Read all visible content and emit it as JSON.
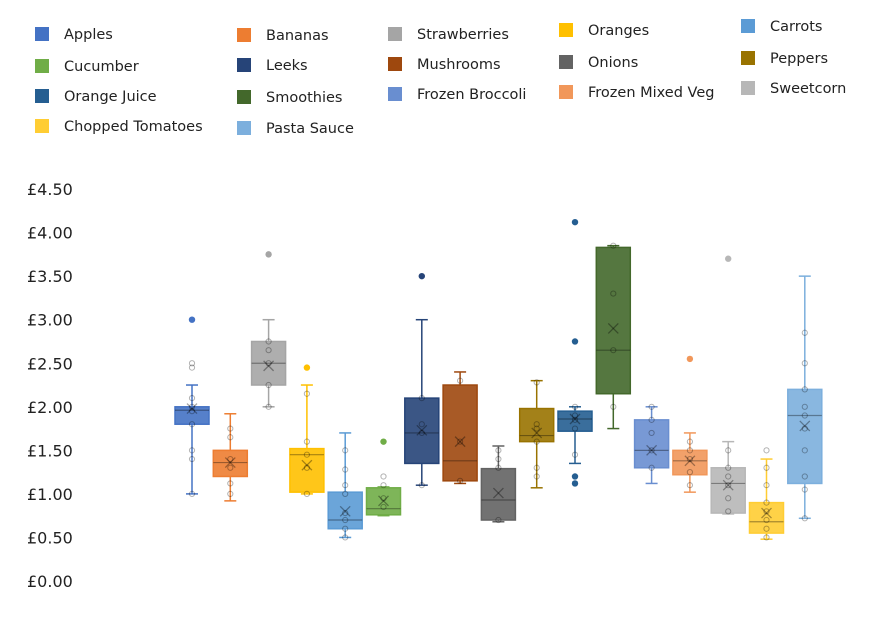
{
  "chart_data": {
    "type": "box",
    "y_axis": {
      "ticks": [
        "£0.00",
        "£0.50",
        "£1.00",
        "£1.50",
        "£2.00",
        "£2.50",
        "£3.00",
        "£3.50",
        "£4.00",
        "£4.50"
      ],
      "range": [
        0,
        4.5
      ]
    },
    "grid": false,
    "legend_position": "top",
    "series": [
      {
        "name": "Apples",
        "color": "#4472C4",
        "min": 1.0,
        "q1": 1.8,
        "median": 1.96,
        "q3": 2.0,
        "max": 2.25,
        "mean": 1.98,
        "outliers": [
          3.0
        ],
        "points": [
          1.0,
          1.4,
          1.5,
          1.8,
          1.95,
          2.0,
          2.1,
          2.45,
          2.5
        ]
      },
      {
        "name": "Bananas",
        "color": "#ED7D31",
        "min": 0.92,
        "q1": 1.2,
        "median": 1.36,
        "q3": 1.5,
        "max": 1.92,
        "mean": 1.36,
        "outliers": [],
        "points": [
          1.0,
          1.12,
          1.3,
          1.4,
          1.65,
          1.75
        ]
      },
      {
        "name": "Strawberries",
        "color": "#A5A5A5",
        "min": 2.0,
        "q1": 2.25,
        "median": 2.5,
        "q3": 2.75,
        "max": 3.0,
        "mean": 2.47,
        "outliers": [
          3.75
        ],
        "points": [
          2.0,
          2.25,
          2.5,
          2.65,
          2.75
        ]
      },
      {
        "name": "Oranges",
        "color": "#FFC000",
        "min": 1.0,
        "q1": 1.02,
        "median": 1.45,
        "q3": 1.52,
        "max": 2.25,
        "mean": 1.33,
        "outliers": [
          2.45
        ],
        "points": [
          1.0,
          1.3,
          1.45,
          1.6,
          2.15
        ]
      },
      {
        "name": "Carrots",
        "color": "#5B9BD5",
        "min": 0.5,
        "q1": 0.6,
        "median": 0.7,
        "q3": 1.02,
        "max": 1.7,
        "mean": 0.8,
        "outliers": [],
        "points": [
          0.5,
          0.6,
          0.7,
          0.78,
          1.0,
          1.1,
          1.28,
          1.5
        ]
      },
      {
        "name": "Cucumber",
        "color": "#70AD47",
        "min": 0.75,
        "q1": 0.76,
        "median": 0.83,
        "q3": 1.07,
        "max": 1.08,
        "mean": 0.92,
        "outliers": [
          1.6
        ],
        "points": [
          0.85,
          0.95,
          1.1,
          1.2
        ]
      },
      {
        "name": "Leeks",
        "color": "#264478",
        "min": 1.1,
        "q1": 1.35,
        "median": 1.7,
        "q3": 2.1,
        "max": 3.0,
        "mean": 1.73,
        "outliers": [
          3.5
        ],
        "points": [
          1.1,
          1.7,
          1.8,
          2.1
        ]
      },
      {
        "name": "Mushrooms",
        "color": "#9E480E",
        "min": 1.12,
        "q1": 1.15,
        "median": 1.38,
        "q3": 2.25,
        "max": 2.4,
        "mean": 1.6,
        "outliers": [],
        "points": [
          1.15,
          1.6,
          2.3
        ]
      },
      {
        "name": "Onions",
        "color": "#636363",
        "min": 0.68,
        "q1": 0.7,
        "median": 0.93,
        "q3": 1.29,
        "max": 1.55,
        "mean": 1.01,
        "outliers": [],
        "points": [
          0.7,
          1.3,
          1.4,
          1.5
        ]
      },
      {
        "name": "Peppers",
        "color": "#997300",
        "min": 1.07,
        "q1": 1.6,
        "median": 1.67,
        "q3": 1.98,
        "max": 2.3,
        "mean": 1.7,
        "outliers": [],
        "points": [
          1.2,
          1.3,
          1.6,
          1.75,
          1.8,
          2.28
        ]
      },
      {
        "name": "Orange Juice",
        "color": "#255E91",
        "min": 1.35,
        "q1": 1.72,
        "median": 1.86,
        "q3": 1.95,
        "max": 2.0,
        "mean": 1.86,
        "outliers": [
          1.12,
          1.2,
          2.75,
          4.12
        ],
        "points": [
          1.45,
          1.75,
          1.85,
          1.9,
          2.0
        ]
      },
      {
        "name": "Smoothies",
        "color": "#43682B",
        "min": 1.75,
        "q1": 2.15,
        "median": 2.65,
        "q3": 3.83,
        "max": 3.85,
        "mean": 2.9,
        "outliers": [],
        "points": [
          2.0,
          2.65,
          3.3,
          3.85
        ]
      },
      {
        "name": "Frozen Broccoli",
        "color": "#698ED0",
        "min": 1.12,
        "q1": 1.3,
        "median": 1.5,
        "q3": 1.85,
        "max": 2.0,
        "mean": 1.5,
        "outliers": [],
        "points": [
          1.3,
          1.5,
          1.7,
          1.85,
          2.0
        ]
      },
      {
        "name": "Frozen Mixed Veg",
        "color": "#F1975A",
        "min": 1.02,
        "q1": 1.22,
        "median": 1.38,
        "q3": 1.5,
        "max": 1.7,
        "mean": 1.38,
        "outliers": [
          2.55
        ],
        "points": [
          1.1,
          1.25,
          1.4,
          1.5,
          1.6
        ]
      },
      {
        "name": "Sweetcorn",
        "color": "#B7B7B7",
        "min": 0.77,
        "q1": 0.78,
        "median": 1.12,
        "q3": 1.3,
        "max": 1.6,
        "mean": 1.1,
        "outliers": [
          3.7
        ],
        "points": [
          0.8,
          0.95,
          1.1,
          1.2,
          1.3,
          1.5
        ]
      },
      {
        "name": "Chopped Tomatoes",
        "color": "#FFCD33",
        "min": 0.48,
        "q1": 0.55,
        "median": 0.68,
        "q3": 0.9,
        "max": 1.4,
        "mean": 0.78,
        "outliers": [],
        "points": [
          0.5,
          0.6,
          0.7,
          0.8,
          0.9,
          1.1,
          1.3,
          1.5
        ]
      },
      {
        "name": "Pasta Sauce",
        "color": "#7CAFDD",
        "min": 0.72,
        "q1": 1.12,
        "median": 1.9,
        "q3": 2.2,
        "max": 3.5,
        "mean": 1.78,
        "outliers": [],
        "points": [
          0.72,
          1.05,
          1.2,
          1.5,
          1.75,
          1.9,
          2.0,
          2.2,
          2.5,
          2.85
        ]
      }
    ]
  }
}
